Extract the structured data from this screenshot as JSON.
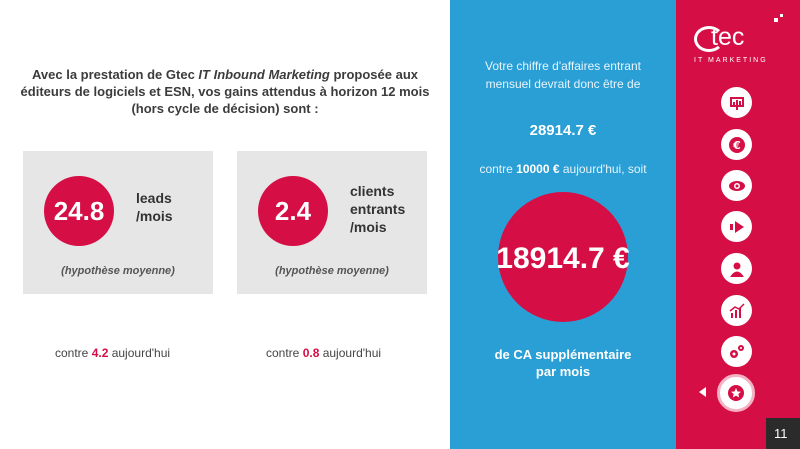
{
  "intro": {
    "before": "Avec la prestation de Gtec ",
    "product": "IT Inbound Marketing",
    "after": " proposée aux éditeurs de logiciels et ESN, vos gains attendus à horizon 12 mois (hors cycle de décision) sont :"
  },
  "cards": [
    {
      "value": "24.8",
      "label": "leads\n/mois",
      "hypothesis": "(hypothèse moyenne)"
    },
    {
      "value": "2.4",
      "label": "clients\nentrants\n/mois",
      "hypothesis": "(hypothèse moyenne)"
    }
  ],
  "comparisons": [
    {
      "prefix": "contre ",
      "value": "4.2",
      "suffix": " aujourd'hui"
    },
    {
      "prefix": "contre ",
      "value": "0.8",
      "suffix": " aujourd'hui"
    }
  ],
  "revenue": {
    "intro": "Votre chiffre d'affaires entrant mensuel devrait donc être de",
    "monthly": "28914.7 €",
    "current_prefix": "contre ",
    "current_value": "10000 €",
    "current_suffix": " aujourd'hui, soit",
    "extra": "18914.7 €",
    "footer": "de CA supplémentaire par mois"
  },
  "brand": {
    "name": "tec",
    "subtitle": "IT MARKETING",
    "accent": "#d50f45",
    "blue": "#2a9fd6"
  },
  "nav_icons": [
    "presentation-icon",
    "euro-icon",
    "eye-icon",
    "arrow-icon",
    "user-icon",
    "chart-icon",
    "gears-icon",
    "star-icon"
  ],
  "page_number": "11"
}
